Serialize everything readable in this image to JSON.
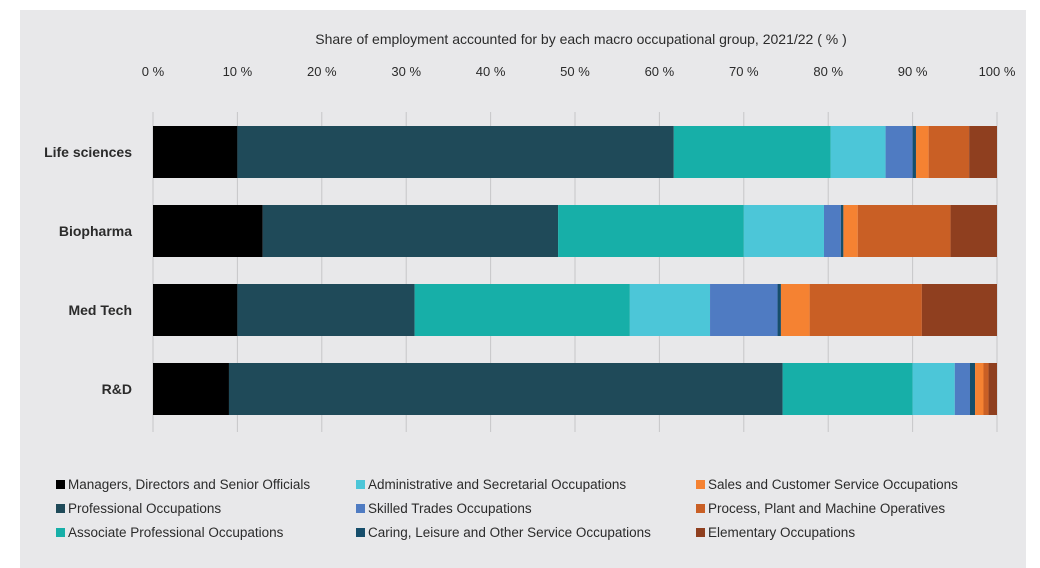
{
  "chart_data": {
    "type": "bar",
    "orientation": "horizontal",
    "stacked": true,
    "xlabel": "Share of employment accounted for by each macro occupational group, 2021/22 ( % )",
    "xlim": [
      0,
      100
    ],
    "x_ticks": [
      0,
      10,
      20,
      30,
      40,
      50,
      60,
      70,
      80,
      90,
      100
    ],
    "x_tick_labels": [
      "0 %",
      "10 %",
      "20 %",
      "30 %",
      "40 %",
      "50 %",
      "60 %",
      "70 %",
      "80 %",
      "90 %",
      "100 %"
    ],
    "x_axis_position": "top",
    "grid": true,
    "legend_position": "bottom",
    "categories": [
      "Life sciences",
      "Biopharma",
      "Med Tech",
      "R&D"
    ],
    "series": [
      {
        "name": "Managers, Directors and Senior Officials",
        "color": "#000000",
        "values": [
          10.0,
          13.0,
          10.0,
          9.0
        ]
      },
      {
        "name": "Professional Occupations",
        "color": "#1f4a59",
        "values": [
          51.7,
          35.0,
          21.0,
          65.6
        ]
      },
      {
        "name": "Associate Professional Occupations",
        "color": "#17afa8",
        "values": [
          18.6,
          22.0,
          25.5,
          15.4
        ]
      },
      {
        "name": "Administrative and Secretarial Occupations",
        "color": "#4cc6d8",
        "values": [
          6.5,
          9.5,
          9.5,
          5.0
        ]
      },
      {
        "name": "Skilled Trades Occupations",
        "color": "#4f7bc2",
        "values": [
          3.2,
          2.0,
          8.0,
          1.8
        ]
      },
      {
        "name": "Caring, Leisure and Other Service Occupations",
        "color": "#164e6b",
        "values": [
          0.4,
          0.3,
          0.4,
          0.6
        ]
      },
      {
        "name": "Sales and Customer Service Occupations",
        "color": "#f58232",
        "values": [
          1.5,
          1.7,
          3.4,
          1.0
        ]
      },
      {
        "name": "Process, Plant and Machine Operatives",
        "color": "#c95f25",
        "values": [
          4.8,
          11.0,
          13.3,
          0.6
        ]
      },
      {
        "name": "Elementary Occupations",
        "color": "#8f3f1f",
        "values": [
          3.3,
          5.5,
          8.9,
          1.0
        ]
      }
    ]
  }
}
